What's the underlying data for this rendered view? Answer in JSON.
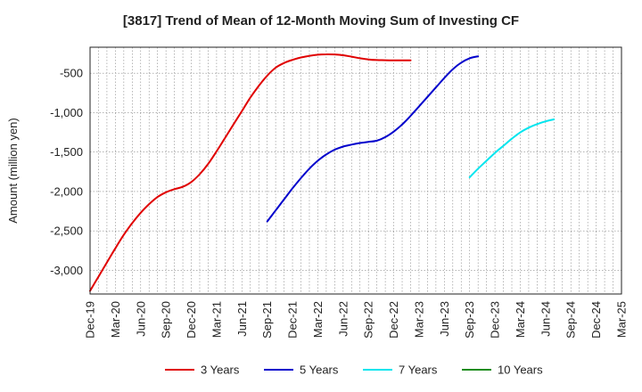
{
  "chart_data": {
    "type": "line",
    "title": "[3817]  Trend of Mean of 12-Month Moving Sum of Investing CF",
    "ylabel": "Amount (million yen)",
    "xlabel": "",
    "ylim": [
      -3300,
      -170
    ],
    "yticks": [
      -500,
      -1000,
      -1500,
      -2000,
      -2500,
      -3000
    ],
    "ytick_labels": [
      "-500",
      "-1,000",
      "-1,500",
      "-2,000",
      "-2,500",
      "-3,000"
    ],
    "xtick_labels": [
      "Dec-19",
      "Mar-20",
      "Jun-20",
      "Sep-20",
      "Dec-20",
      "Mar-21",
      "Jun-21",
      "Sep-21",
      "Dec-21",
      "Mar-22",
      "Jun-22",
      "Sep-22",
      "Dec-22",
      "Mar-23",
      "Jun-23",
      "Sep-23",
      "Dec-23",
      "Mar-24",
      "Jun-24",
      "Sep-24",
      "Dec-24",
      "Mar-25"
    ],
    "grid": true,
    "legend_position": "bottom",
    "series": [
      {
        "name": "3 Years",
        "color": "#e00000",
        "start_index": 0,
        "values": [
          -3260,
          -3080,
          -2900,
          -2720,
          -2550,
          -2400,
          -2270,
          -2160,
          -2070,
          -2010,
          -1970,
          -1940,
          -1880,
          -1780,
          -1650,
          -1490,
          -1320,
          -1150,
          -980,
          -810,
          -660,
          -530,
          -430,
          -370,
          -330,
          -300,
          -280,
          -265,
          -260,
          -262,
          -272,
          -290,
          -310,
          -325,
          -333,
          -335,
          -337,
          -337,
          -337
        ]
      },
      {
        "name": "5 Years",
        "color": "#0000cc",
        "start_index": 21,
        "values": [
          -2380,
          -2240,
          -2100,
          -1960,
          -1830,
          -1710,
          -1610,
          -1530,
          -1470,
          -1430,
          -1405,
          -1385,
          -1370,
          -1355,
          -1310,
          -1240,
          -1150,
          -1040,
          -920,
          -800,
          -680,
          -560,
          -450,
          -365,
          -310,
          -285
        ]
      },
      {
        "name": "7 Years",
        "color": "#00e5ee",
        "start_index": 45,
        "values": [
          -1820,
          -1710,
          -1610,
          -1510,
          -1420,
          -1330,
          -1250,
          -1190,
          -1145,
          -1110,
          -1085
        ]
      },
      {
        "name": "10 Years",
        "color": "#1a8c1a",
        "start_index": 0,
        "values": []
      }
    ]
  }
}
